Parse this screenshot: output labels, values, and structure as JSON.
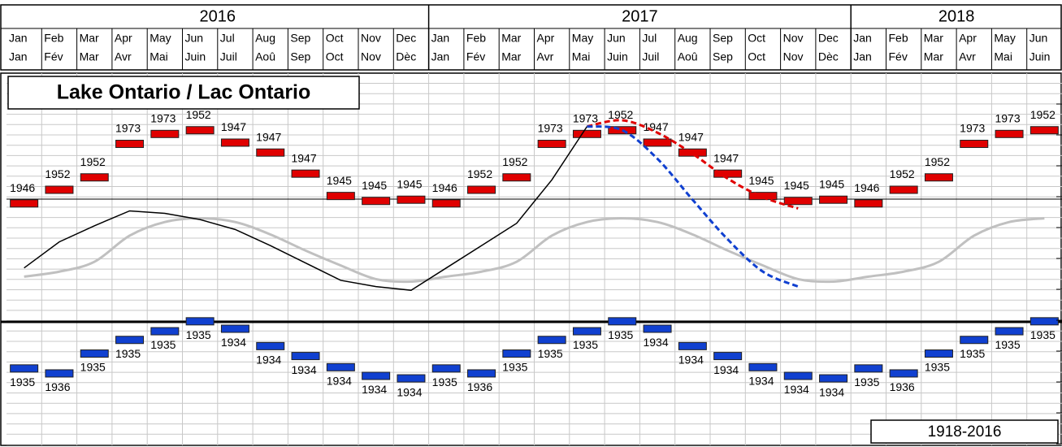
{
  "chart_data": {
    "type": "combo",
    "title": "Lake Ontario / Lac Ontario",
    "period_label": "1918-2016",
    "years": [
      "2016",
      "2017",
      "2018"
    ],
    "months_en": [
      "Jan",
      "Feb",
      "Mar",
      "Apr",
      "May",
      "Jun",
      "Jul",
      "Aug",
      "Sep",
      "Oct",
      "Nov",
      "Dec",
      "Jan",
      "Feb",
      "Mar",
      "Apr",
      "May",
      "Jun",
      "Jul",
      "Aug",
      "Sep",
      "Oct",
      "Nov",
      "Dec",
      "Jan",
      "Feb",
      "Mar",
      "Apr",
      "May",
      "Jun"
    ],
    "months_fr": [
      "Jan",
      "Fév",
      "Mar",
      "Avr",
      "Mai",
      "Juin",
      "Juil",
      "Aoû",
      "Sep",
      "Oct",
      "Nov",
      "Dèc",
      "Jan",
      "Fév",
      "Mar",
      "Avr",
      "Mai",
      "Juin",
      "Juil",
      "Aoû",
      "Sep",
      "Oct",
      "Nov",
      "Dèc",
      "Jan",
      "Fév",
      "Mar",
      "Avr",
      "Mai",
      "Juin"
    ],
    "ylim": [
      73.2,
      76.2
    ],
    "series": [
      {
        "kind": "marker",
        "color": "#e00000",
        "label_side": "above",
        "values": [
          75.15,
          75.26,
          75.36,
          75.63,
          75.71,
          75.74,
          75.64,
          75.56,
          75.39,
          75.21,
          75.17,
          75.18,
          75.15,
          75.26,
          75.36,
          75.63,
          75.71,
          75.74,
          75.64,
          75.56,
          75.39,
          75.21,
          75.17,
          75.18,
          75.15,
          75.26,
          75.36,
          75.63,
          75.71,
          75.74
        ],
        "labels": [
          "1946",
          "1952",
          "1952",
          "1973",
          "1973",
          "1952",
          "1947",
          "1947",
          "1947",
          "1945",
          "1945",
          "1945",
          "1946",
          "1952",
          "1952",
          "1973",
          "1973",
          "1952",
          "1947",
          "1947",
          "1947",
          "1945",
          "1945",
          "1945",
          "1946",
          "1952",
          "1952",
          "1973",
          "1973",
          "1952"
        ]
      },
      {
        "kind": "marker",
        "color": "#1040d0",
        "label_side": "below",
        "values": [
          73.82,
          73.78,
          73.94,
          74.05,
          74.12,
          74.2,
          74.14,
          74.0,
          73.92,
          73.83,
          73.76,
          73.74,
          73.82,
          73.78,
          73.94,
          74.05,
          74.12,
          74.2,
          74.14,
          74.0,
          73.92,
          73.83,
          73.76,
          73.74,
          73.82,
          73.78,
          73.94,
          74.05,
          74.12,
          74.2
        ],
        "labels": [
          "1935",
          "1936",
          "1935",
          "1935",
          "1935",
          "1935",
          "1934",
          "1934",
          "1934",
          "1934",
          "1934",
          "1934",
          "1935",
          "1936",
          "1935",
          "1935",
          "1935",
          "1935",
          "1934",
          "1934",
          "1934",
          "1934",
          "1934",
          "1934",
          "1935",
          "1936",
          "1935",
          "1935",
          "1935",
          "1935"
        ]
      },
      {
        "kind": "line",
        "color": "#c0c0c0",
        "width": 3,
        "dashed": false,
        "values": [
          74.56,
          74.6,
          74.68,
          74.89,
          75.0,
          75.03,
          75.0,
          74.9,
          74.77,
          74.65,
          74.54,
          74.52,
          74.56,
          74.6,
          74.68,
          74.89,
          75.0,
          75.03,
          75.0,
          74.9,
          74.77,
          74.65,
          74.54,
          74.52,
          74.56,
          74.6,
          74.68,
          74.89,
          75.0,
          75.03
        ]
      },
      {
        "kind": "line",
        "color": "#000000",
        "width": 1.5,
        "dashed": false,
        "values": [
          74.63,
          74.84,
          74.97,
          75.09,
          75.07,
          75.02,
          74.94,
          74.81,
          74.67,
          74.53,
          74.48,
          74.45,
          74.63,
          74.81,
          74.99,
          75.34,
          75.77,
          null,
          null,
          null,
          null,
          null,
          null,
          null,
          null,
          null,
          null,
          null,
          null,
          null
        ]
      },
      {
        "kind": "line",
        "color": "#e00000",
        "width": 3,
        "dashed": true,
        "values": [
          null,
          null,
          null,
          null,
          null,
          null,
          null,
          null,
          null,
          null,
          null,
          null,
          null,
          null,
          null,
          null,
          75.77,
          75.82,
          75.72,
          75.55,
          75.35,
          75.2,
          75.11,
          null,
          null,
          null,
          null,
          null,
          null,
          null
        ]
      },
      {
        "kind": "line",
        "color": "#1040d0",
        "width": 3,
        "dashed": true,
        "values": [
          null,
          null,
          null,
          null,
          null,
          null,
          null,
          null,
          null,
          null,
          null,
          null,
          null,
          null,
          null,
          null,
          75.77,
          75.74,
          75.51,
          75.18,
          74.86,
          74.6,
          74.48,
          null,
          null,
          null,
          null,
          null,
          null,
          null
        ]
      }
    ]
  }
}
